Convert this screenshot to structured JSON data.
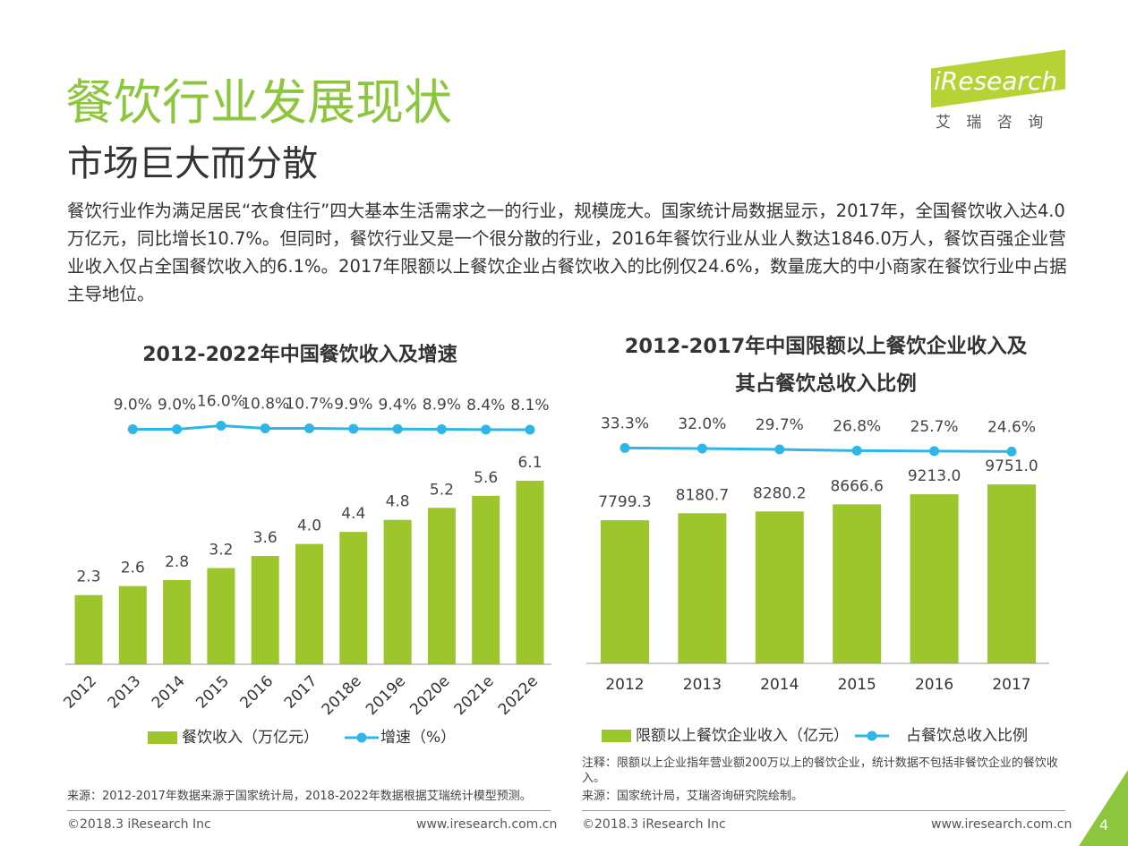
{
  "header": {
    "title": "餐饮行业发展现状",
    "subtitle": "市场巨大而分散"
  },
  "logo": {
    "name": "iResearch",
    "tagline": "艾 瑞 咨 询"
  },
  "intro": "餐饮行业作为满足居民“衣食住行”四大基本生活需求之一的行业，规模庞大。国家统计局数据显示，2017年，全国餐饮收入达4.0万亿元，同比增长10.7%。但同时，餐饮行业又是一个很分散的行业，2016年餐饮行业从业人数达1846.0万人，餐饮百强企业营业收入仅占全国餐饮收入的6.1%。2017年限额以上餐饮企业占餐饮收入的比例仅24.6%，数量庞大的中小商家在餐饮行业中占据主导地位。",
  "chart_data": [
    {
      "type": "bar",
      "title": "2012-2022年中国餐饮收入及增速",
      "categories": [
        "2012",
        "2013",
        "2014",
        "2015",
        "2016",
        "2017",
        "2018e",
        "2019e",
        "2020e",
        "2021e",
        "2022e"
      ],
      "ylim": [
        0,
        8
      ],
      "y2lim": [
        -450,
        20
      ],
      "series": [
        {
          "name": "餐饮收入（万亿元）",
          "color": "#9dc52c",
          "values": [
            2.3,
            2.6,
            2.8,
            3.2,
            3.6,
            4.0,
            4.4,
            4.8,
            5.2,
            5.6,
            6.1
          ],
          "value_labels": [
            "2.3",
            "2.6",
            "2.8",
            "3.2",
            "3.6",
            "4.0",
            "4.4",
            "4.8",
            "5.2",
            "5.6",
            "6.1"
          ]
        },
        {
          "name": "增速（%）",
          "type": "line",
          "axis": "y2",
          "color": "#2eb7e6",
          "values": [
            null,
            9.0,
            9.0,
            16.0,
            10.8,
            10.7,
            9.9,
            9.4,
            8.9,
            8.4,
            8.1
          ],
          "value_labels": [
            null,
            "9.0%",
            "9.0%",
            "16.0%",
            "10.8%",
            "10.7%",
            "9.9%",
            "9.4%",
            "8.9%",
            "8.4%",
            "8.1%"
          ]
        }
      ],
      "rotate_x_labels": true
    },
    {
      "type": "bar",
      "title": "2012-2017年中国限额以上餐饮企业收入及其占餐饮总收入比例",
      "categories": [
        "2012",
        "2013",
        "2014",
        "2015",
        "2016",
        "2017"
      ],
      "ylim": [
        0,
        12000
      ],
      "y2lim": [
        -490,
        45
      ],
      "series": [
        {
          "name": "限额以上餐饮企业收入（亿元）",
          "color": "#9dc52c",
          "values": [
            7799.3,
            8180.7,
            8280.2,
            8666.6,
            9213.0,
            9751.0
          ],
          "value_labels": [
            "7799.3",
            "8180.7",
            "8280.2",
            "8666.6",
            "9213.0",
            "9751.0"
          ]
        },
        {
          "name": "占餐饮总收入比例",
          "type": "line",
          "axis": "y2",
          "color": "#2eb7e6",
          "values": [
            33.3,
            32.0,
            29.7,
            26.8,
            25.7,
            24.6
          ],
          "value_labels": [
            "33.3%",
            "32.0%",
            "29.7%",
            "26.8%",
            "25.7%",
            "24.6%"
          ]
        }
      ],
      "rotate_x_labels": false
    }
  ],
  "notes": {
    "left_source": "来源：2012-2017年数据来源于国家统计局，2018-2022年数据根据艾瑞统计模型预测。",
    "right_note": "注释：限额以上企业指年营业额200万以上的餐饮企业，统计数据不包括非餐饮企业的餐饮收入。",
    "right_source": "来源：国家统计局，艾瑞咨询研究院绘制。"
  },
  "footer": {
    "left_copyright": "©2018.3 iResearch Inc",
    "left_url": "www.iresearch.com.cn",
    "right_copyright": "©2018.3 iResearch Inc",
    "right_url": "www.iresearch.com.cn",
    "page": 4
  }
}
